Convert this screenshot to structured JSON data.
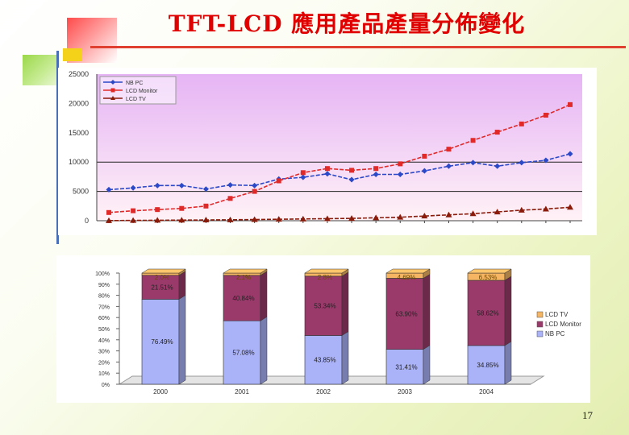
{
  "slide": {
    "title": "TFT-LCD 應用產品產量分佈變化",
    "page_number": "17"
  },
  "colors": {
    "nbpc": "#2a48c8",
    "monitor": "#e02a2a",
    "tv": "#8a1a0a",
    "plot_bg_top": "#e6b4f5",
    "plot_bg_bottom": "#fff2f6",
    "bar_nbpc": "#aab2f8",
    "bar_monitor": "#9a3a6a",
    "bar_tv": "#f5b562"
  },
  "chart_data": [
    {
      "type": "line",
      "y_ticks": [
        "25000",
        "20000",
        "15000",
        "10000",
        "5000",
        "0"
      ],
      "ylim": [
        0,
        25000
      ],
      "x_count": 20,
      "legend": [
        "NB PC",
        "LCD Monitor",
        "LCD TV"
      ],
      "series": [
        {
          "name": "NB PC",
          "values": [
            5300,
            5600,
            6000,
            6000,
            5400,
            6100,
            6000,
            7100,
            7400,
            8000,
            7000,
            7900,
            7900,
            8500,
            9300,
            9900,
            9300,
            9900,
            10300,
            11400
          ]
        },
        {
          "name": "LCD Monitor",
          "values": [
            1400,
            1700,
            1900,
            2100,
            2500,
            3800,
            5000,
            6800,
            8200,
            8900,
            8600,
            8900,
            9700,
            11000,
            12200,
            13700,
            15100,
            16500,
            18000,
            19800
          ]
        },
        {
          "name": "LCD TV",
          "values": [
            20,
            50,
            80,
            100,
            130,
            160,
            200,
            250,
            300,
            350,
            400,
            500,
            600,
            800,
            1000,
            1200,
            1500,
            1800,
            2000,
            2300
          ]
        }
      ]
    },
    {
      "type": "bar",
      "stacked": true,
      "categories": [
        "2000",
        "2001",
        "2002",
        "2003",
        "2004"
      ],
      "y_ticks": [
        "100%",
        "90%",
        "80%",
        "70%",
        "60%",
        "50%",
        "40%",
        "30%",
        "20%",
        "10%",
        "0%"
      ],
      "legend": [
        "LCD TV",
        "LCD Monitor",
        "NB PC"
      ],
      "series": [
        {
          "name": "NB PC",
          "values": [
            76.49,
            57.08,
            43.85,
            31.41,
            34.85
          ],
          "labels": [
            "76.49%",
            "57.08%",
            "43.85%",
            "31.41%",
            "34.85%"
          ]
        },
        {
          "name": "LCD Monitor",
          "values": [
            21.51,
            40.84,
            53.34,
            63.9,
            58.62
          ],
          "labels": [
            "21.51%",
            "40.84%",
            "53.34%",
            "63.90%",
            "58.62%"
          ]
        },
        {
          "name": "LCD TV",
          "values": [
            2.0,
            2.08,
            2.81,
            4.69,
            6.53
          ],
          "labels": [
            "2.0%",
            "2.1%",
            "2.8%",
            "4.69%",
            "6.53%"
          ]
        }
      ]
    }
  ]
}
